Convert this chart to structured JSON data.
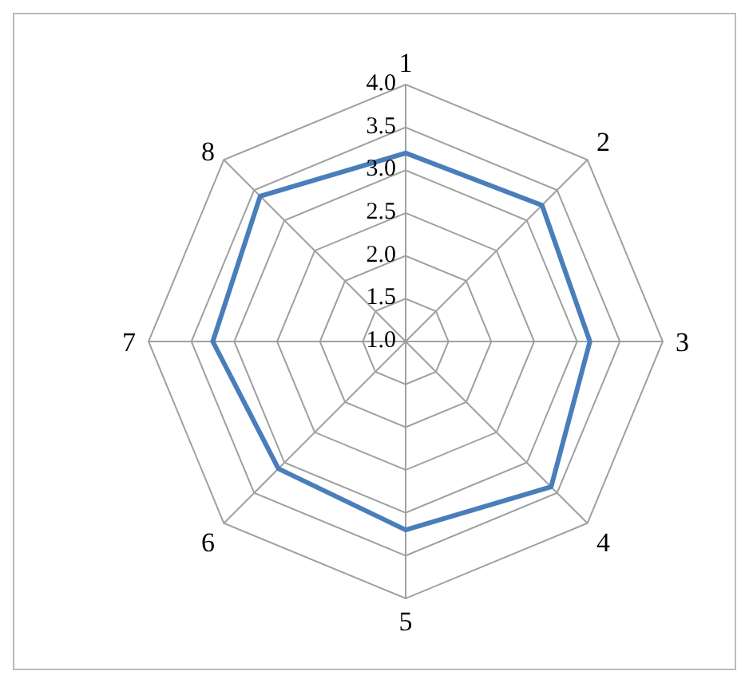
{
  "chart_data": {
    "type": "radar",
    "categories": [
      "1",
      "2",
      "3",
      "4",
      "5",
      "6",
      "7",
      "8"
    ],
    "series": [
      {
        "color": "#4a7ebb",
        "values": [
          3.2,
          3.25,
          3.15,
          3.4,
          3.2,
          3.1,
          3.25,
          3.4
        ]
      }
    ],
    "ylim": [
      1.0,
      4.0
    ],
    "yticks": [
      {
        "value": 1.0,
        "label": "1.0"
      },
      {
        "value": 1.5,
        "label": "1.5"
      },
      {
        "value": 2.0,
        "label": "2.0"
      },
      {
        "value": 2.5,
        "label": "2.5"
      },
      {
        "value": 3.0,
        "label": "3.0"
      },
      {
        "value": 3.5,
        "label": "3.5"
      },
      {
        "value": 4.0,
        "label": "4.0"
      }
    ],
    "grid": true,
    "legend": false,
    "marker": "none"
  }
}
